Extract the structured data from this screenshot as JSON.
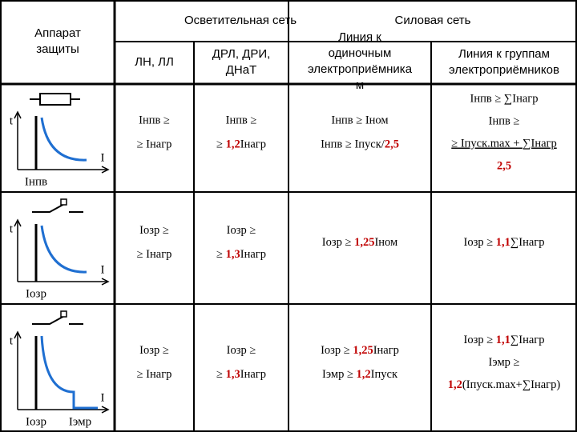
{
  "header": {
    "protection": [
      "Аппарат",
      "защиты"
    ],
    "lighting": "Осветительная сеть",
    "power": "Силовая сеть",
    "sub": [
      [
        "ЛН, ЛЛ"
      ],
      [
        "ДРЛ, ДРИ,",
        "ДНаТ"
      ],
      [
        "Линия к",
        "одиночным",
        "электроприёмника",
        "м"
      ],
      [
        "Линия к группам",
        "электроприёмников"
      ]
    ]
  },
  "rows": [
    {
      "diagram": {
        "t": "t",
        "i": "I",
        "labels": [
          "Iнпв"
        ]
      },
      "cells": [
        [
          [
            {
              "text": "Iнпв ≥"
            }
          ],
          [
            {
              "text": "≥ Iнагр"
            }
          ]
        ],
        [
          [
            {
              "text": "Iнпв ≥"
            }
          ],
          [
            {
              "text": "≥ "
            },
            {
              "text": "1,2",
              "color": "#c00000"
            },
            {
              "text": "Iнагр"
            }
          ]
        ],
        [
          [
            {
              "text": "Iнпв ≥ Iном"
            }
          ],
          [
            {
              "text": "Iнпв ≥ Iпуск/"
            },
            {
              "text": "2,5",
              "color": "#c00000"
            }
          ]
        ],
        [
          [
            {
              "text": "Iнпв ≥ ∑Iнагр"
            }
          ],
          [
            {
              "text": "Iнпв ≥"
            }
          ],
          [
            {
              "text": "≥ Iпуск.max + ∑Iнагр",
              "underline": true
            }
          ],
          [
            {
              "text": "2,5",
              "color": "#c00000"
            }
          ]
        ]
      ]
    },
    {
      "diagram": {
        "t": "t",
        "i": "I",
        "labels": [
          "Iозр"
        ]
      },
      "cells": [
        [
          [
            {
              "text": "Iозр ≥"
            }
          ],
          [
            {
              "text": "≥ Iнагр"
            }
          ]
        ],
        [
          [
            {
              "text": "Iозр ≥"
            }
          ],
          [
            {
              "text": "≥ "
            },
            {
              "text": "1,3",
              "color": "#c00000"
            },
            {
              "text": "Iнагр"
            }
          ]
        ],
        [
          [
            {
              "text": "Iозр ≥ "
            },
            {
              "text": "1,25",
              "color": "#c00000"
            },
            {
              "text": "Iном"
            }
          ]
        ],
        [
          [
            {
              "text": "Iозр ≥ "
            },
            {
              "text": "1,1",
              "color": "#c00000"
            },
            {
              "text": "∑Iнагр"
            }
          ]
        ]
      ]
    },
    {
      "diagram": {
        "t": "t",
        "i": "I",
        "labels": [
          "Iозр",
          "Iэмр"
        ]
      },
      "cells": [
        [
          [
            {
              "text": "Iозр ≥"
            }
          ],
          [
            {
              "text": "≥ Iнагр"
            }
          ]
        ],
        [
          [
            {
              "text": "Iозр ≥"
            }
          ],
          [
            {
              "text": "≥ "
            },
            {
              "text": "1,3",
              "color": "#c00000"
            },
            {
              "text": "Iнагр"
            }
          ]
        ],
        [
          [
            {
              "text": "Iозр ≥ "
            },
            {
              "text": "1,25",
              "color": "#c00000"
            },
            {
              "text": "Iнагр"
            }
          ],
          [
            {
              "text": "Iэмр ≥ "
            },
            {
              "text": "1,2",
              "color": "#c00000"
            },
            {
              "text": "Iпуск"
            }
          ]
        ],
        [
          [
            {
              "text": "Iозр ≥ "
            },
            {
              "text": "1,1",
              "color": "#c00000"
            },
            {
              "text": "∑Iнагр"
            }
          ],
          [
            {
              "text": "Iэмр ≥"
            }
          ],
          [
            {
              "text": "1,2",
              "color": "#c00000"
            },
            {
              "text": "(Iпуск.max+∑Iнагр)"
            }
          ]
        ]
      ]
    }
  ]
}
